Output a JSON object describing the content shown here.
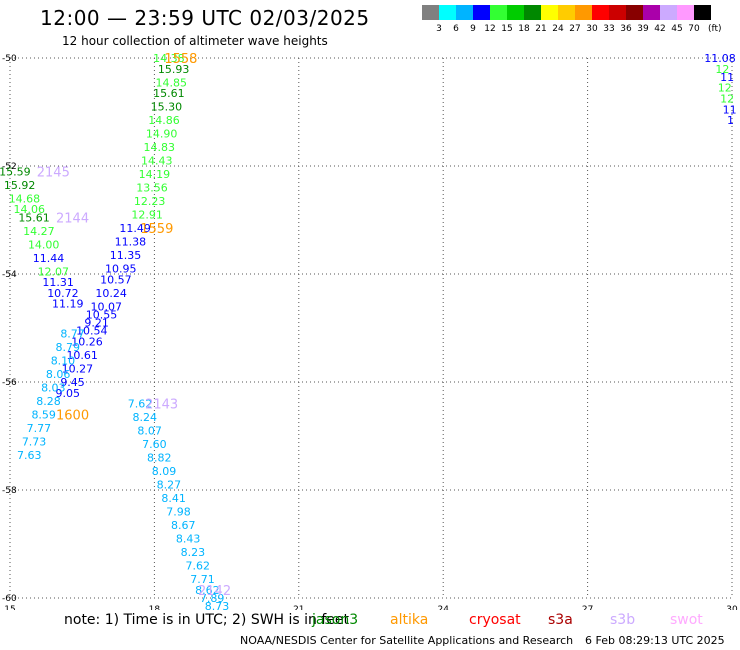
{
  "header": {
    "title": "12:00 — 23:59 UTC 02/03/2025",
    "subtitle": "12 hour collection of altimeter wave heights"
  },
  "colorbar": {
    "colors": [
      "#808080",
      "#00ffff",
      "#00b4ff",
      "#0000ff",
      "#33ff33",
      "#00cc00",
      "#008800",
      "#ffff00",
      "#ffcc00",
      "#ff9900",
      "#ff0000",
      "#cc0000",
      "#880000",
      "#aa00aa",
      "#ccaaff",
      "#ff99ff",
      "#000000"
    ],
    "labels": [
      "3",
      "6",
      "9",
      "12",
      "15",
      "18",
      "21",
      "24",
      "27",
      "30",
      "33",
      "36",
      "39",
      "42",
      "45",
      "70"
    ],
    "unit": "(ft)"
  },
  "footer": {
    "note": "note: 1) Time is in UTC; 2) SWH is in feet",
    "credit": "NOAA/NESDIS Center for Satellite Applications and Research",
    "timestamp": "6 Feb 08:29:13 UTC 2025",
    "satellites": [
      {
        "name": "jason3",
        "color": "#008800"
      },
      {
        "name": "altika",
        "color": "#ff9900"
      },
      {
        "name": "cryosat",
        "color": "#ff0000"
      },
      {
        "name": "s3a",
        "color": "#aa0000"
      },
      {
        "name": "s3b",
        "color": "#ccaaff"
      },
      {
        "name": "swot",
        "color": "#ffaaff"
      }
    ]
  },
  "chart_data": {
    "type": "scatter",
    "title": "12 hour collection of altimeter wave heights",
    "xlabel": "",
    "ylabel": "",
    "xlim": [
      15,
      30
    ],
    "ylim": [
      -60,
      -50
    ],
    "x_ticks": [
      15,
      18,
      21,
      24,
      27,
      30
    ],
    "y_ticks": [
      -50,
      -52,
      -54,
      -56,
      -58,
      -60
    ],
    "x_tick_labels": [
      "15",
      "18",
      "21",
      "24",
      "27",
      "30"
    ],
    "y_tick_labels": [
      "-50",
      "-52",
      "-54",
      "-56",
      "-58",
      "-60"
    ],
    "grid": true,
    "points": [
      {
        "x": 18.3,
        "y": -50.0,
        "v": "14.38",
        "color": "#33ff33"
      },
      {
        "x": 18.4,
        "y": -50.2,
        "v": "15.93",
        "color": "#008800"
      },
      {
        "x": 18.35,
        "y": -50.45,
        "v": "14.85",
        "color": "#33ff33"
      },
      {
        "x": 18.3,
        "y": -50.65,
        "v": "15.61",
        "color": "#008800"
      },
      {
        "x": 18.25,
        "y": -50.9,
        "v": "15.30",
        "color": "#008800"
      },
      {
        "x": 18.2,
        "y": -51.15,
        "v": "14.86",
        "color": "#33ff33"
      },
      {
        "x": 18.15,
        "y": -51.4,
        "v": "14.90",
        "color": "#33ff33"
      },
      {
        "x": 18.1,
        "y": -51.65,
        "v": "14.83",
        "color": "#33ff33"
      },
      {
        "x": 18.05,
        "y": -51.9,
        "v": "14.43",
        "color": "#33ff33"
      },
      {
        "x": 18.0,
        "y": -52.15,
        "v": "14.19",
        "color": "#33ff33"
      },
      {
        "x": 17.95,
        "y": -52.4,
        "v": "13.56",
        "color": "#33ff33"
      },
      {
        "x": 17.9,
        "y": -52.65,
        "v": "12.23",
        "color": "#33ff33"
      },
      {
        "x": 17.85,
        "y": -52.9,
        "v": "12.91",
        "color": "#33ff33"
      },
      {
        "x": 15.1,
        "y": -52.1,
        "v": "15.59",
        "color": "#008800"
      },
      {
        "x": 15.2,
        "y": -52.35,
        "v": "15.92",
        "color": "#008800"
      },
      {
        "x": 15.3,
        "y": -52.6,
        "v": "14.68",
        "color": "#33ff33"
      },
      {
        "x": 15.4,
        "y": -52.8,
        "v": "14.06",
        "color": "#33ff33"
      },
      {
        "x": 15.5,
        "y": -52.95,
        "v": "15.61",
        "color": "#008800"
      },
      {
        "x": 15.6,
        "y": -53.2,
        "v": "14.27",
        "color": "#33ff33"
      },
      {
        "x": 15.7,
        "y": -53.45,
        "v": "14.00",
        "color": "#33ff33"
      },
      {
        "x": 15.8,
        "y": -53.7,
        "v": "11.44",
        "color": "#0000ff"
      },
      {
        "x": 15.9,
        "y": -53.95,
        "v": "12.07",
        "color": "#33ff33"
      },
      {
        "x": 16.0,
        "y": -54.15,
        "v": "11.31",
        "color": "#0000ff"
      },
      {
        "x": 16.1,
        "y": -54.35,
        "v": "10.72",
        "color": "#0000ff"
      },
      {
        "x": 16.2,
        "y": -54.55,
        "v": "11.19",
        "color": "#0000ff"
      },
      {
        "x": 17.6,
        "y": -53.15,
        "v": "11.49",
        "color": "#0000ff"
      },
      {
        "x": 17.5,
        "y": -53.4,
        "v": "11.38",
        "color": "#0000ff"
      },
      {
        "x": 17.4,
        "y": -53.65,
        "v": "11.35",
        "color": "#0000ff"
      },
      {
        "x": 17.3,
        "y": -53.9,
        "v": "10.95",
        "color": "#0000ff"
      },
      {
        "x": 17.2,
        "y": -54.1,
        "v": "10.57",
        "color": "#0000ff"
      },
      {
        "x": 17.1,
        "y": -54.35,
        "v": "10.24",
        "color": "#0000ff"
      },
      {
        "x": 17.0,
        "y": -54.6,
        "v": "10.07",
        "color": "#0000ff"
      },
      {
        "x": 16.9,
        "y": -54.75,
        "v": "10.55",
        "color": "#0000ff"
      },
      {
        "x": 16.8,
        "y": -54.9,
        "v": "9.21",
        "color": "#0000ff"
      },
      {
        "x": 16.7,
        "y": -55.05,
        "v": "10.54",
        "color": "#0000ff"
      },
      {
        "x": 16.6,
        "y": -55.25,
        "v": "10.26",
        "color": "#0000ff"
      },
      {
        "x": 16.5,
        "y": -55.5,
        "v": "10.61",
        "color": "#0000ff"
      },
      {
        "x": 16.4,
        "y": -55.75,
        "v": "10.27",
        "color": "#0000ff"
      },
      {
        "x": 16.3,
        "y": -56.0,
        "v": "9.45",
        "color": "#0000ff"
      },
      {
        "x": 16.2,
        "y": -56.2,
        "v": "9.05",
        "color": "#0000ff"
      },
      {
        "x": 16.3,
        "y": -55.1,
        "v": "8.77",
        "color": "#00b4ff"
      },
      {
        "x": 16.2,
        "y": -55.35,
        "v": "8.79",
        "color": "#00b4ff"
      },
      {
        "x": 16.1,
        "y": -55.6,
        "v": "8.10",
        "color": "#00b4ff"
      },
      {
        "x": 16.0,
        "y": -55.85,
        "v": "8.06",
        "color": "#00b4ff"
      },
      {
        "x": 15.9,
        "y": -56.1,
        "v": "8.03",
        "color": "#00b4ff"
      },
      {
        "x": 15.8,
        "y": -56.35,
        "v": "8.28",
        "color": "#00b4ff"
      },
      {
        "x": 15.7,
        "y": -56.6,
        "v": "8.59",
        "color": "#00b4ff"
      },
      {
        "x": 15.6,
        "y": -56.85,
        "v": "7.77",
        "color": "#00b4ff"
      },
      {
        "x": 15.5,
        "y": -57.1,
        "v": "7.73",
        "color": "#00b4ff"
      },
      {
        "x": 15.4,
        "y": -57.35,
        "v": "7.63",
        "color": "#00b4ff"
      },
      {
        "x": 17.7,
        "y": -56.4,
        "v": "7.62",
        "color": "#00b4ff"
      },
      {
        "x": 17.8,
        "y": -56.65,
        "v": "8.24",
        "color": "#00b4ff"
      },
      {
        "x": 17.9,
        "y": -56.9,
        "v": "8.07",
        "color": "#00b4ff"
      },
      {
        "x": 18.0,
        "y": -57.15,
        "v": "7.60",
        "color": "#00b4ff"
      },
      {
        "x": 18.1,
        "y": -57.4,
        "v": "8.82",
        "color": "#00b4ff"
      },
      {
        "x": 18.2,
        "y": -57.65,
        "v": "8.09",
        "color": "#00b4ff"
      },
      {
        "x": 18.3,
        "y": -57.9,
        "v": "8.27",
        "color": "#00b4ff"
      },
      {
        "x": 18.4,
        "y": -58.15,
        "v": "8.41",
        "color": "#00b4ff"
      },
      {
        "x": 18.5,
        "y": -58.4,
        "v": "7.98",
        "color": "#00b4ff"
      },
      {
        "x": 18.6,
        "y": -58.65,
        "v": "8.67",
        "color": "#00b4ff"
      },
      {
        "x": 18.7,
        "y": -58.9,
        "v": "8.43",
        "color": "#00b4ff"
      },
      {
        "x": 18.8,
        "y": -59.15,
        "v": "8.23",
        "color": "#00b4ff"
      },
      {
        "x": 18.9,
        "y": -59.4,
        "v": "7.62",
        "color": "#00b4ff"
      },
      {
        "x": 19.0,
        "y": -59.65,
        "v": "7.71",
        "color": "#00b4ff"
      },
      {
        "x": 19.1,
        "y": -59.85,
        "v": "8.62",
        "color": "#00b4ff"
      },
      {
        "x": 19.2,
        "y": -60.0,
        "v": "7.89",
        "color": "#00b4ff"
      },
      {
        "x": 19.3,
        "y": -60.15,
        "v": "8.73",
        "color": "#00b4ff"
      },
      {
        "x": 29.75,
        "y": -50.0,
        "v": "11.08",
        "color": "#0000ff"
      },
      {
        "x": 29.8,
        "y": -50.2,
        "v": "12",
        "color": "#33ff33"
      },
      {
        "x": 29.9,
        "y": -50.35,
        "v": "11",
        "color": "#0000ff"
      },
      {
        "x": 29.85,
        "y": -50.55,
        "v": "12",
        "color": "#33ff33"
      },
      {
        "x": 29.9,
        "y": -50.75,
        "v": "12",
        "color": "#33ff33"
      },
      {
        "x": 29.95,
        "y": -50.95,
        "v": "11",
        "color": "#0000ff"
      },
      {
        "x": 29.97,
        "y": -51.15,
        "v": "1",
        "color": "#0000ff"
      }
    ],
    "pass_labels": [
      {
        "x": 18.55,
        "y": -50.0,
        "text": "1558",
        "color": "#ff9900"
      },
      {
        "x": 15.9,
        "y": -52.1,
        "text": "2145",
        "color": "#ccaaff"
      },
      {
        "x": 16.3,
        "y": -52.95,
        "text": "2144",
        "color": "#ccaaff"
      },
      {
        "x": 18.05,
        "y": -53.15,
        "text": "1559",
        "color": "#ff9900"
      },
      {
        "x": 16.3,
        "y": -56.6,
        "text": "1600",
        "color": "#ff9900"
      },
      {
        "x": 18.15,
        "y": -56.4,
        "text": "2143",
        "color": "#ccaaff"
      },
      {
        "x": 19.25,
        "y": -59.85,
        "text": "2142",
        "color": "#ccaaff"
      }
    ]
  }
}
